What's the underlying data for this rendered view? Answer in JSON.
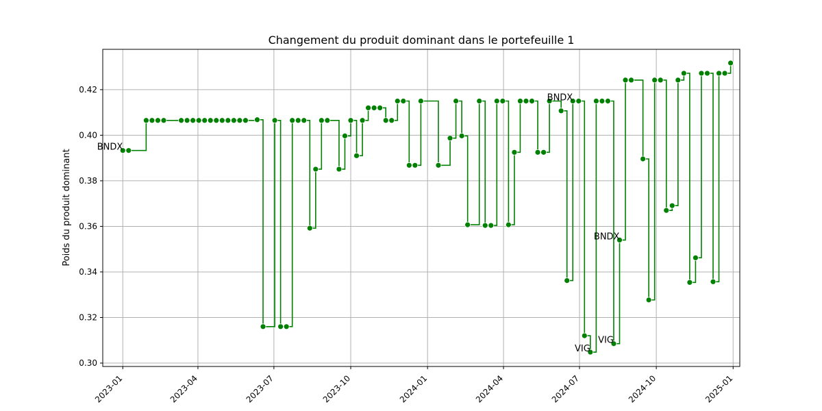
{
  "chart_data": {
    "type": "line",
    "title": "Changement du produit dominant dans le portefeuille 1",
    "xlabel": "",
    "ylabel": "Poids du produit dominant",
    "xlim": [
      "2022-12-08",
      "2025-01-09"
    ],
    "ylim": [
      0.2985,
      0.4377
    ],
    "x_ticks": [
      "2023-01",
      "2023-04",
      "2023-07",
      "2023-10",
      "2024-01",
      "2024-04",
      "2024-07",
      "2024-10",
      "2025-01"
    ],
    "y_ticks": [
      0.3,
      0.32,
      0.34,
      0.36,
      0.38,
      0.4,
      0.42
    ],
    "y_tick_labels": [
      "0.30",
      "0.32",
      "0.34",
      "0.36",
      "0.38",
      "0.40",
      "0.42"
    ],
    "grid": true,
    "line_style": "steps-post",
    "series": [
      {
        "color": "#008000",
        "points": [
          [
            "2023-01-01",
            0.3933
          ],
          [
            "2023-01-08",
            0.3933
          ],
          [
            "2023-01-29",
            0.4065
          ],
          [
            "2023-02-05",
            0.4065
          ],
          [
            "2023-02-12",
            0.4065
          ],
          [
            "2023-02-19",
            0.4065
          ],
          [
            "2023-03-12",
            0.4065
          ],
          [
            "2023-03-19",
            0.4065
          ],
          [
            "2023-03-26",
            0.4065
          ],
          [
            "2023-04-02",
            0.4065
          ],
          [
            "2023-04-09",
            0.4065
          ],
          [
            "2023-04-16",
            0.4065
          ],
          [
            "2023-04-23",
            0.4065
          ],
          [
            "2023-04-30",
            0.4065
          ],
          [
            "2023-05-07",
            0.4065
          ],
          [
            "2023-05-14",
            0.4065
          ],
          [
            "2023-05-21",
            0.4065
          ],
          [
            "2023-05-28",
            0.4065
          ],
          [
            "2023-06-11",
            0.4068
          ],
          [
            "2023-06-18",
            0.316
          ],
          [
            "2023-07-02",
            0.4065
          ],
          [
            "2023-07-09",
            0.316
          ],
          [
            "2023-07-16",
            0.316
          ],
          [
            "2023-07-23",
            0.4065
          ],
          [
            "2023-07-30",
            0.4065
          ],
          [
            "2023-08-06",
            0.4065
          ],
          [
            "2023-08-13",
            0.3592
          ],
          [
            "2023-08-20",
            0.3851
          ],
          [
            "2023-08-27",
            0.4065
          ],
          [
            "2023-09-03",
            0.4065
          ],
          [
            "2023-09-17",
            0.3851
          ],
          [
            "2023-09-24",
            0.3997
          ],
          [
            "2023-10-01",
            0.4065
          ],
          [
            "2023-10-08",
            0.391
          ],
          [
            "2023-10-15",
            0.4065
          ],
          [
            "2023-10-22",
            0.412
          ],
          [
            "2023-10-29",
            0.412
          ],
          [
            "2023-11-05",
            0.412
          ],
          [
            "2023-11-12",
            0.4065
          ],
          [
            "2023-11-19",
            0.4065
          ],
          [
            "2023-11-26",
            0.415
          ],
          [
            "2023-12-03",
            0.415
          ],
          [
            "2023-12-10",
            0.3868
          ],
          [
            "2023-12-17",
            0.3868
          ],
          [
            "2023-12-24",
            0.415
          ],
          [
            "2024-01-14",
            0.3868
          ],
          [
            "2024-01-28",
            0.3987
          ],
          [
            "2024-02-04",
            0.415
          ],
          [
            "2024-02-11",
            0.3997
          ],
          [
            "2024-02-18",
            0.3607
          ],
          [
            "2024-03-03",
            0.415
          ],
          [
            "2024-03-10",
            0.3604
          ],
          [
            "2024-03-17",
            0.3604
          ],
          [
            "2024-03-24",
            0.415
          ],
          [
            "2024-03-31",
            0.415
          ],
          [
            "2024-04-07",
            0.3607
          ],
          [
            "2024-04-14",
            0.3925
          ],
          [
            "2024-04-21",
            0.415
          ],
          [
            "2024-04-28",
            0.415
          ],
          [
            "2024-05-05",
            0.415
          ],
          [
            "2024-05-12",
            0.3925
          ],
          [
            "2024-05-19",
            0.3925
          ],
          [
            "2024-05-26",
            0.415
          ],
          [
            "2024-06-09",
            0.4107
          ],
          [
            "2024-06-16",
            0.3362
          ],
          [
            "2024-06-23",
            0.415
          ],
          [
            "2024-06-30",
            0.415
          ],
          [
            "2024-07-07",
            0.312
          ],
          [
            "2024-07-14",
            0.3048
          ],
          [
            "2024-07-21",
            0.415
          ],
          [
            "2024-07-28",
            0.415
          ],
          [
            "2024-08-04",
            0.415
          ],
          [
            "2024-08-11",
            0.3085
          ],
          [
            "2024-08-18",
            0.354
          ],
          [
            "2024-08-25",
            0.4242
          ],
          [
            "2024-09-01",
            0.4242
          ],
          [
            "2024-09-15",
            0.3896
          ],
          [
            "2024-09-22",
            0.3277
          ],
          [
            "2024-09-29",
            0.4242
          ],
          [
            "2024-10-06",
            0.4242
          ],
          [
            "2024-10-13",
            0.367
          ],
          [
            "2024-10-20",
            0.3691
          ],
          [
            "2024-10-27",
            0.4242
          ],
          [
            "2024-11-03",
            0.4272
          ],
          [
            "2024-11-10",
            0.3354
          ],
          [
            "2024-11-17",
            0.3462
          ],
          [
            "2024-11-24",
            0.4272
          ],
          [
            "2024-12-01",
            0.4272
          ],
          [
            "2024-12-08",
            0.3357
          ],
          [
            "2024-12-15",
            0.4272
          ],
          [
            "2024-12-22",
            0.4272
          ],
          [
            "2024-12-29",
            0.4317
          ]
        ]
      }
    ],
    "annotations": [
      {
        "text": "BNDX",
        "x": "2023-01-01",
        "y": 0.3933
      },
      {
        "text": "BNDX",
        "x": "2024-06-23",
        "y": 0.415
      },
      {
        "text": "BNDX",
        "x": "2024-08-18",
        "y": 0.354
      },
      {
        "text": "VIG",
        "x": "2024-07-14",
        "y": 0.3048
      },
      {
        "text": "VIG",
        "x": "2024-08-11",
        "y": 0.3085
      }
    ]
  }
}
